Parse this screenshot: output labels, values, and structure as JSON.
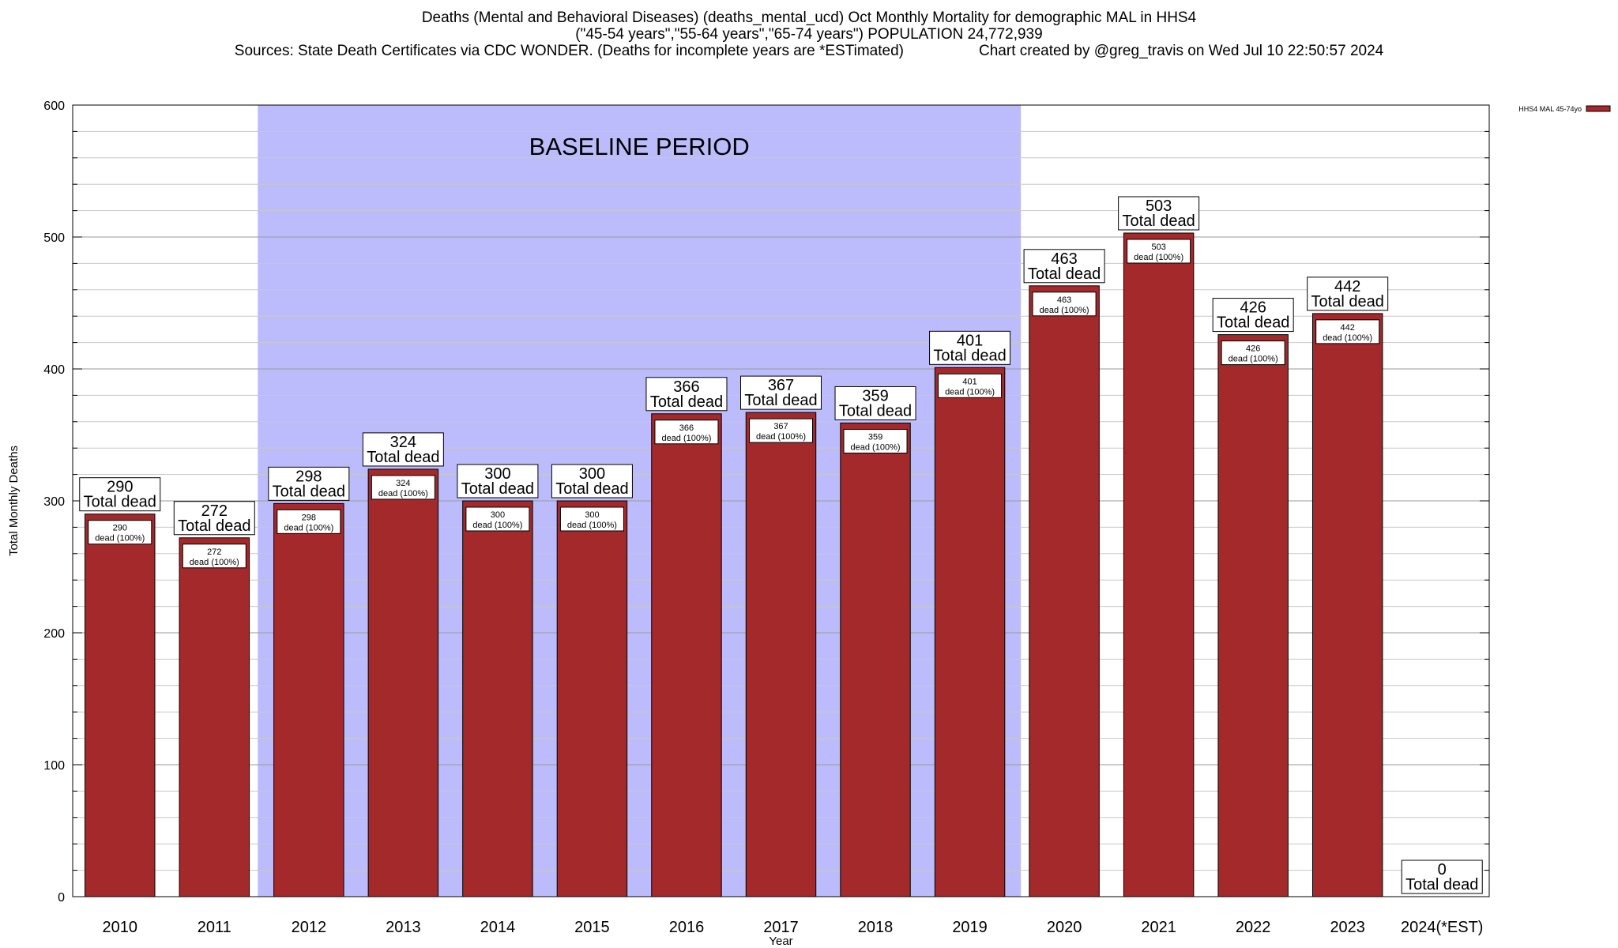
{
  "chart_data": {
    "type": "bar",
    "title": "Deaths (Mental and Behavioral Diseases) (deaths_mental_ucd) Oct Monthly Mortality for demographic MAL in HHS4",
    "subtitle": "(\"45-54 years\",\"55-64 years\",\"65-74 years\") POPULATION 24,772,939",
    "sources": "Sources: State Death Certificates via CDC WONDER. (Deaths for incomplete years are *ESTimated)",
    "credit": "Chart created by @greg_travis on Wed Jul 10 22:50:57 2024",
    "xlabel": "Year",
    "ylabel": "Total Monthly Deaths",
    "ylim": [
      0,
      600
    ],
    "yticks": [
      0,
      100,
      200,
      300,
      400,
      500,
      600
    ],
    "categories": [
      "2010",
      "2011",
      "2012",
      "2013",
      "2014",
      "2015",
      "2016",
      "2017",
      "2018",
      "2019",
      "2020",
      "2021",
      "2022",
      "2023",
      "2024(*EST)"
    ],
    "series": [
      {
        "name": "HHS4 MAL 45-74yo",
        "color": "#a3292b",
        "values": [
          290,
          272,
          298,
          324,
          300,
          300,
          366,
          367,
          359,
          401,
          463,
          503,
          426,
          442,
          0
        ]
      }
    ],
    "total_label_suffix": "Total dead",
    "inner_label_suffix": "dead (100%)",
    "baseline": {
      "label": "BASELINE PERIOD",
      "from": "2012",
      "to": "2019",
      "color": "#bcbcfc"
    },
    "legend_position": "top-right",
    "grid": true
  }
}
